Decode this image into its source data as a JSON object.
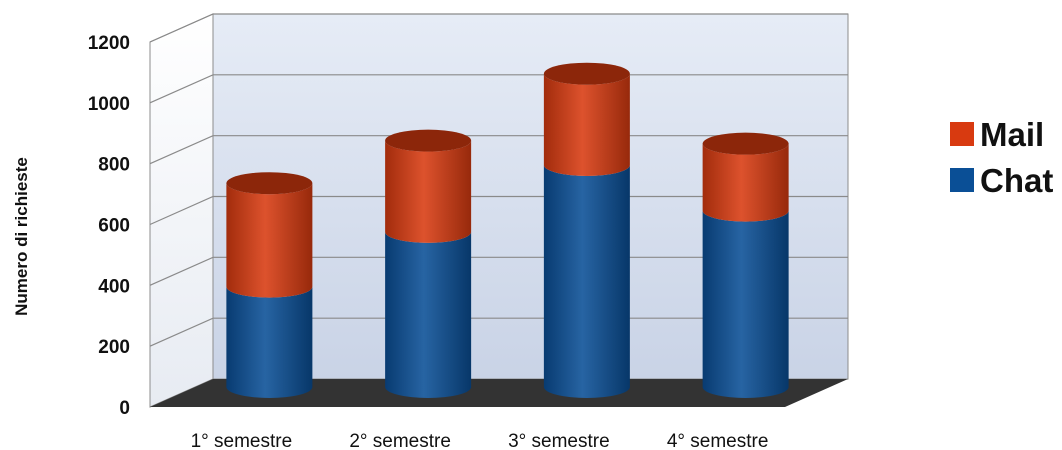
{
  "chart_data": {
    "type": "bar",
    "stacked": true,
    "style": "3d-cylinder",
    "categories": [
      "1° semestre",
      "2° semestre",
      "3° semestre",
      "4° semestre"
    ],
    "series": [
      {
        "name": "Chat",
        "values": [
          330,
          510,
          730,
          580
        ],
        "color": "#0a4f96"
      },
      {
        "name": "Mail",
        "values": [
          340,
          300,
          300,
          220
        ],
        "color": "#d83a10"
      }
    ],
    "ylabel": "Numero di richieste",
    "yticks": [
      0,
      200,
      400,
      600,
      800,
      1000,
      1200
    ],
    "ylim": [
      0,
      1200
    ],
    "grid": true,
    "legend_position": "right",
    "legend_order": [
      "Mail",
      "Chat"
    ]
  }
}
